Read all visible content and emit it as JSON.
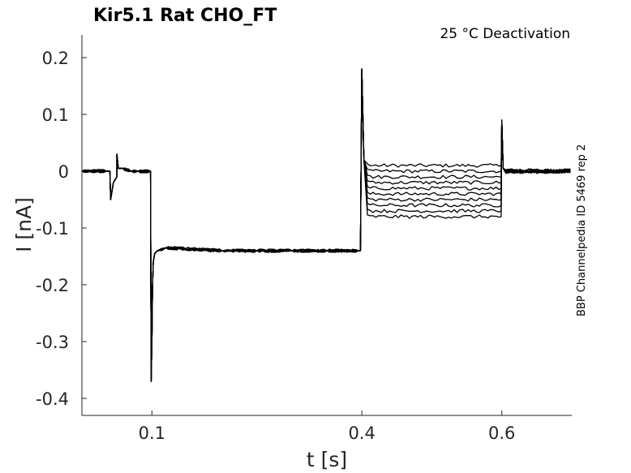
{
  "chart_data": {
    "type": "line",
    "title": "Kir5.1  Rat  CHO_FT",
    "annotation": "25 °C  Deactivation",
    "side_label": "BBP Channelpedia ID 5469 rep 2",
    "xlabel": "t [s]",
    "ylabel": "I [nA]",
    "xlim": [
      0.0,
      0.7
    ],
    "ylim": [
      -0.43,
      0.24
    ],
    "xticks": [
      0.1,
      0.4,
      0.6
    ],
    "xtick_labels": [
      "0.1",
      "0.4",
      "0.6"
    ],
    "yticks": [
      0.2,
      0.1,
      0,
      -0.1,
      -0.2,
      -0.3,
      -0.4
    ],
    "ytick_labels": [
      "0.2",
      "0.1",
      "0",
      "-0.1",
      "-0.2",
      "-0.3",
      "-0.4"
    ],
    "grid": false,
    "legend": "none",
    "common_trace": {
      "x": [
        0.0,
        0.035,
        0.04,
        0.041,
        0.045,
        0.05,
        0.05,
        0.052,
        0.058,
        0.07,
        0.08,
        0.098,
        0.099,
        0.1,
        0.101,
        0.102,
        0.104,
        0.108,
        0.12,
        0.2,
        0.25,
        0.3,
        0.35,
        0.395,
        0.398
      ],
      "y": [
        0.0,
        0.0,
        0.0,
        -0.05,
        -0.02,
        -0.01,
        0.03,
        0.005,
        0.005,
        0.0,
        0.0,
        0.0,
        -0.37,
        -0.3,
        -0.2,
        -0.16,
        -0.145,
        -0.14,
        -0.135,
        -0.14,
        -0.14,
        -0.14,
        -0.14,
        -0.14,
        -0.14
      ]
    },
    "step_levels": [
      0.01,
      0.0,
      -0.01,
      -0.02,
      -0.03,
      -0.04,
      -0.05,
      -0.06,
      -0.07,
      -0.08
    ],
    "step_start": 0.4,
    "step_end": 0.6,
    "onset_peak": 0.18,
    "offset_spike": 0.09,
    "tail_level": 0.0,
    "end_time": 0.7
  }
}
